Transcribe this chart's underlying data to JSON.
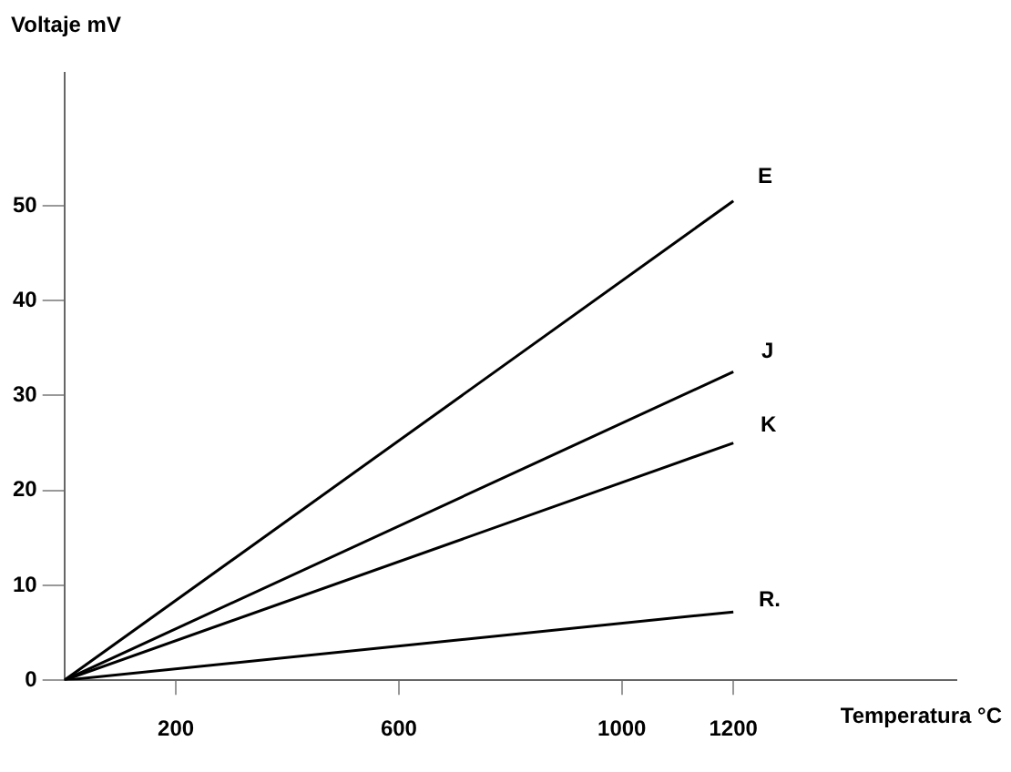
{
  "chart_data": {
    "type": "line",
    "xlabel": "Temperatura °C",
    "ylabel": "Voltaje mV",
    "x": [
      0,
      1200
    ],
    "xlim": [
      0,
      1600
    ],
    "xticks": [
      200,
      600,
      1000,
      1200
    ],
    "ylim": [
      0,
      64
    ],
    "yticks": [
      0,
      10,
      20,
      30,
      40,
      50
    ],
    "grid": false,
    "legend": false,
    "marker": "none",
    "line_style": "solid",
    "series": [
      {
        "name": "E",
        "color": "#000000",
        "values": [
          0,
          50.5
        ]
      },
      {
        "name": "J",
        "color": "#000000",
        "values": [
          0,
          32.5
        ]
      },
      {
        "name": "K",
        "color": "#000000",
        "values": [
          0,
          25
        ]
      },
      {
        "name": "R.",
        "color": "#000000",
        "values": [
          0,
          7.2
        ]
      }
    ]
  }
}
